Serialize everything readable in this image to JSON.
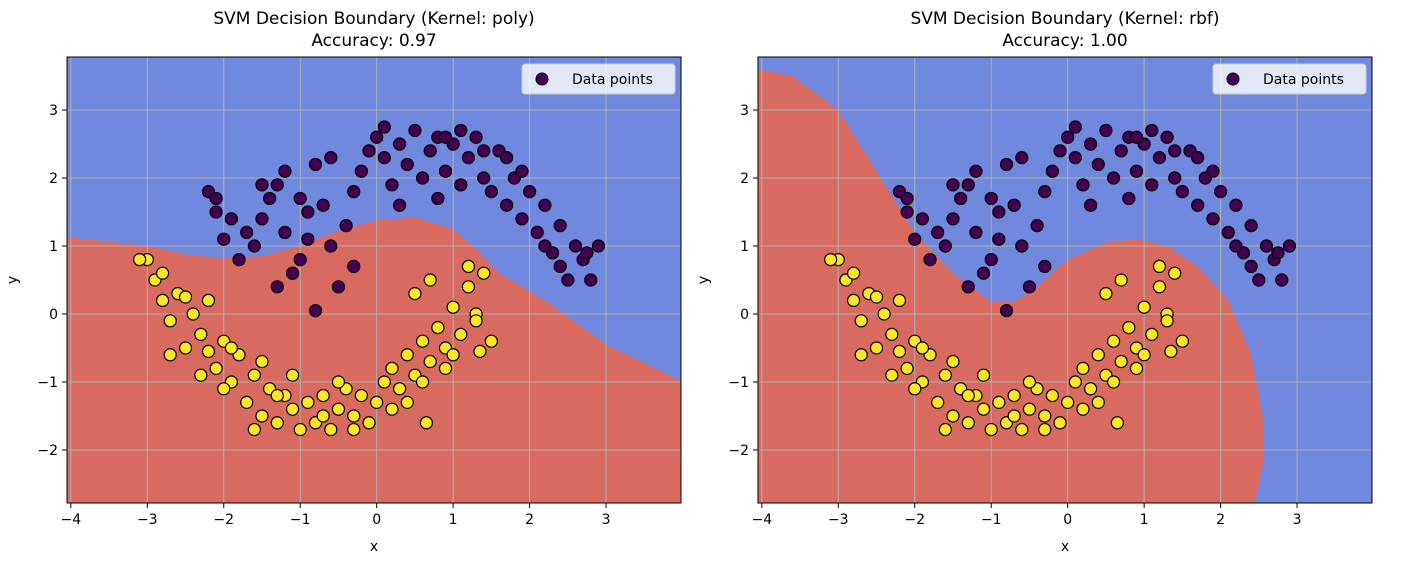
{
  "colors": {
    "class_0_region": "#7088dd",
    "class_1_region": "#d86a5f",
    "class_0_point": "#440154",
    "class_1_point": "#fde725",
    "grid": "#b0b0b0"
  },
  "chart_data": [
    {
      "type": "scatter",
      "title": "SVM Decision Boundary (Kernel: poly)",
      "subtitle": "Accuracy: 0.97",
      "xlabel": "x",
      "ylabel": "y",
      "xlim": [
        -4.05,
        3.98
      ],
      "ylim": [
        -2.78,
        3.78
      ],
      "xticks": [
        -4,
        -3,
        -2,
        -1,
        0,
        1,
        2,
        3
      ],
      "yticks": [
        -2,
        -1,
        0,
        1,
        2,
        3
      ],
      "grid": true,
      "legend": {
        "position": "top-right",
        "entries": [
          "Data points"
        ]
      },
      "background_region": "class_0",
      "boundary": [
        [
          -4.05,
          1.13
        ],
        [
          -3,
          1.0
        ],
        [
          -2.5,
          0.88
        ],
        [
          -2,
          0.82
        ],
        [
          -1.5,
          0.85
        ],
        [
          -1,
          1.0
        ],
        [
          -0.5,
          1.22
        ],
        [
          0,
          1.38
        ],
        [
          0.5,
          1.42
        ],
        [
          1,
          1.25
        ],
        [
          1.3,
          0.95
        ],
        [
          1.6,
          0.6
        ],
        [
          2.2,
          0.2
        ],
        [
          3.0,
          -0.45
        ],
        [
          3.98,
          -0.98
        ]
      ],
      "class_1_region_side": "below"
    },
    {
      "type": "scatter",
      "title": "SVM Decision Boundary (Kernel: rbf)",
      "subtitle": "Accuracy: 1.00",
      "xlabel": "x",
      "ylabel": "y",
      "xlim": [
        -4.05,
        3.98
      ],
      "ylim": [
        -2.78,
        3.78
      ],
      "xticks": [
        -4,
        -3,
        -2,
        -1,
        0,
        1,
        2,
        3
      ],
      "yticks": [
        -2,
        -1,
        0,
        1,
        2,
        3
      ],
      "grid": true,
      "legend": {
        "position": "top-right",
        "entries": [
          "Data points"
        ]
      },
      "background_region": "class_0",
      "boundary": [
        [
          -4.05,
          3.6
        ],
        [
          -3.6,
          3.5
        ],
        [
          -3.0,
          3.0
        ],
        [
          -2.5,
          2.1
        ],
        [
          -2.0,
          1.2
        ],
        [
          -1.5,
          0.6
        ],
        [
          -1.0,
          0.18
        ],
        [
          -0.7,
          0.18
        ],
        [
          -0.4,
          0.4
        ],
        [
          0,
          0.8
        ],
        [
          0.5,
          1.05
        ],
        [
          0.9,
          1.1
        ],
        [
          1.3,
          1.0
        ],
        [
          1.7,
          0.7
        ],
        [
          2.1,
          0.2
        ],
        [
          2.4,
          -0.6
        ],
        [
          2.55,
          -1.5
        ],
        [
          2.57,
          -2.1
        ],
        [
          2.45,
          -2.78
        ]
      ],
      "class_1_region_side": "left-below"
    }
  ],
  "data_points": {
    "label": "Data points",
    "class_0": [
      [
        -2.2,
        1.8
      ],
      [
        -2.1,
        1.5
      ],
      [
        -2.0,
        1.1
      ],
      [
        -1.9,
        1.4
      ],
      [
        -1.8,
        0.8
      ],
      [
        -1.7,
        1.2
      ],
      [
        -1.6,
        1.0
      ],
      [
        -1.5,
        1.4
      ],
      [
        -1.4,
        1.7
      ],
      [
        -1.3,
        1.9
      ],
      [
        -1.2,
        1.2
      ],
      [
        -1.1,
        0.6
      ],
      [
        -1.0,
        0.8
      ],
      [
        -0.9,
        1.5
      ],
      [
        -0.8,
        2.2
      ],
      [
        -0.7,
        1.6
      ],
      [
        -0.6,
        1.0
      ],
      [
        -0.5,
        0.4
      ],
      [
        -0.4,
        1.3
      ],
      [
        -0.3,
        1.8
      ],
      [
        -0.2,
        2.1
      ],
      [
        -0.1,
        2.4
      ],
      [
        0.0,
        2.6
      ],
      [
        0.1,
        2.3
      ],
      [
        0.2,
        1.9
      ],
      [
        0.3,
        2.5
      ],
      [
        0.4,
        2.2
      ],
      [
        0.5,
        2.7
      ],
      [
        0.6,
        2.0
      ],
      [
        0.7,
        2.4
      ],
      [
        0.8,
        2.6
      ],
      [
        0.9,
        2.1
      ],
      [
        1.0,
        2.5
      ],
      [
        1.1,
        1.9
      ],
      [
        1.2,
        2.3
      ],
      [
        1.3,
        2.6
      ],
      [
        1.4,
        2.0
      ],
      [
        1.5,
        1.8
      ],
      [
        1.6,
        2.4
      ],
      [
        1.7,
        1.6
      ],
      [
        1.8,
        2.0
      ],
      [
        1.9,
        1.4
      ],
      [
        2.0,
        1.8
      ],
      [
        2.1,
        1.2
      ],
      [
        2.2,
        1.6
      ],
      [
        2.3,
        0.9
      ],
      [
        2.4,
        1.3
      ],
      [
        2.5,
        0.5
      ],
      [
        2.6,
        1.0
      ],
      [
        2.7,
        0.8
      ],
      [
        2.8,
        0.5
      ],
      [
        2.9,
        1.0
      ],
      [
        -1.5,
        1.9
      ],
      [
        -1.2,
        2.1
      ],
      [
        -0.9,
        1.1
      ],
      [
        -0.6,
        2.3
      ],
      [
        0.3,
        1.6
      ],
      [
        0.8,
        1.7
      ],
      [
        1.4,
        2.4
      ],
      [
        1.9,
        2.1
      ],
      [
        2.2,
        1.0
      ],
      [
        -2.1,
        1.7
      ],
      [
        -1.3,
        0.4
      ],
      [
        -0.8,
        0.05
      ],
      [
        -0.3,
        0.7
      ],
      [
        0.9,
        2.6
      ],
      [
        1.7,
        2.3
      ],
      [
        2.4,
        0.7
      ],
      [
        2.75,
        0.9
      ],
      [
        -1.0,
        1.7
      ],
      [
        0.1,
        2.75
      ],
      [
        1.1,
        2.7
      ]
    ],
    "class_1": [
      [
        -3.0,
        0.8
      ],
      [
        -2.9,
        0.5
      ],
      [
        -2.8,
        0.2
      ],
      [
        -2.7,
        -0.1
      ],
      [
        -2.6,
        0.3
      ],
      [
        -2.5,
        -0.5
      ],
      [
        -2.4,
        0.0
      ],
      [
        -2.3,
        -0.3
      ],
      [
        -2.2,
        0.2
      ],
      [
        -2.1,
        -0.8
      ],
      [
        -2.0,
        -0.4
      ],
      [
        -1.9,
        -1.0
      ],
      [
        -1.8,
        -0.6
      ],
      [
        -1.7,
        -1.3
      ],
      [
        -1.6,
        -0.9
      ],
      [
        -1.5,
        -1.5
      ],
      [
        -1.4,
        -1.1
      ],
      [
        -1.3,
        -1.6
      ],
      [
        -1.2,
        -1.2
      ],
      [
        -1.1,
        -1.4
      ],
      [
        -1.0,
        -1.7
      ],
      [
        -0.9,
        -1.3
      ],
      [
        -0.8,
        -1.6
      ],
      [
        -0.7,
        -1.2
      ],
      [
        -0.6,
        -1.7
      ],
      [
        -0.5,
        -1.4
      ],
      [
        -0.4,
        -1.1
      ],
      [
        -0.3,
        -1.5
      ],
      [
        -0.2,
        -1.2
      ],
      [
        -0.1,
        -1.6
      ],
      [
        0.0,
        -1.3
      ],
      [
        0.1,
        -1.0
      ],
      [
        0.2,
        -0.8
      ],
      [
        0.3,
        -1.1
      ],
      [
        0.4,
        -0.6
      ],
      [
        0.5,
        -0.9
      ],
      [
        0.6,
        -0.4
      ],
      [
        0.7,
        -0.7
      ],
      [
        0.8,
        -0.2
      ],
      [
        0.9,
        -0.5
      ],
      [
        1.0,
        0.1
      ],
      [
        1.1,
        -0.3
      ],
      [
        1.2,
        0.4
      ],
      [
        1.3,
        0.0
      ],
      [
        1.4,
        0.6
      ],
      [
        1.5,
        -0.4
      ],
      [
        -2.7,
        -0.6
      ],
      [
        -2.3,
        -0.9
      ],
      [
        -1.9,
        -0.5
      ],
      [
        -1.5,
        -0.7
      ],
      [
        -1.1,
        -0.9
      ],
      [
        -0.7,
        -1.5
      ],
      [
        -0.3,
        -1.7
      ],
      [
        0.2,
        -1.4
      ],
      [
        0.6,
        -1.0
      ],
      [
        1.0,
        -0.6
      ],
      [
        1.3,
        -0.1
      ],
      [
        -2.5,
        0.25
      ],
      [
        -2.0,
        -1.1
      ],
      [
        -1.3,
        -1.2
      ],
      [
        -0.5,
        -1.0
      ],
      [
        0.4,
        -1.3
      ],
      [
        0.9,
        -0.8
      ],
      [
        1.2,
        0.7
      ],
      [
        0.5,
        0.3
      ],
      [
        0.7,
        0.5
      ],
      [
        -3.1,
        0.8
      ],
      [
        -2.8,
        0.6
      ],
      [
        0.65,
        -1.6
      ],
      [
        1.35,
        -0.55
      ],
      [
        -1.6,
        -1.7
      ],
      [
        -2.2,
        -0.55
      ]
    ]
  }
}
